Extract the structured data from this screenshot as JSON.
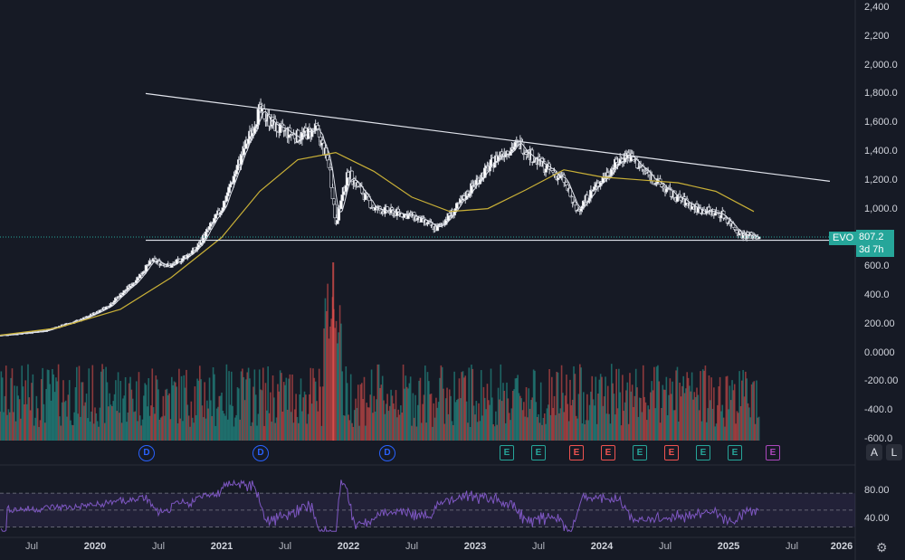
{
  "ticker": {
    "symbol": "EVO",
    "price": "807.2",
    "countdown": "3d 7h"
  },
  "price_axis": [
    "2,400",
    "2,200",
    "2,000.0",
    "1,800.0",
    "1,600.0",
    "1,400.0",
    "1,200.0",
    "1,000.0",
    "600.0",
    "400.0",
    "200.00",
    "0.0000",
    "-200.00",
    "-400.0",
    "-600.0"
  ],
  "rsi_axis": [
    "80.00",
    "40.00"
  ],
  "time_axis": [
    {
      "label": "Jul",
      "major": false
    },
    {
      "label": "2020",
      "major": true
    },
    {
      "label": "Jul",
      "major": false
    },
    {
      "label": "2021",
      "major": true
    },
    {
      "label": "Jul",
      "major": false
    },
    {
      "label": "2022",
      "major": true
    },
    {
      "label": "Jul",
      "major": false
    },
    {
      "label": "2023",
      "major": true
    },
    {
      "label": "Jul",
      "major": false
    },
    {
      "label": "2024",
      "major": true
    },
    {
      "label": "Jul",
      "major": false
    },
    {
      "label": "2025",
      "major": true
    },
    {
      "label": "Jul",
      "major": false
    },
    {
      "label": "2026",
      "major": true
    }
  ],
  "events": [
    {
      "t": 2020.4,
      "kind": "D"
    },
    {
      "t": 2021.3,
      "kind": "D"
    },
    {
      "t": 2022.3,
      "kind": "D"
    },
    {
      "t": 2023.25,
      "kind": "E",
      "color": "g"
    },
    {
      "t": 2023.5,
      "kind": "E",
      "color": "g"
    },
    {
      "t": 2023.8,
      "kind": "E",
      "color": "r"
    },
    {
      "t": 2024.05,
      "kind": "E",
      "color": "r"
    },
    {
      "t": 2024.3,
      "kind": "E",
      "color": "g"
    },
    {
      "t": 2024.55,
      "kind": "E",
      "color": "r"
    },
    {
      "t": 2024.8,
      "kind": "E",
      "color": "g"
    },
    {
      "t": 2025.05,
      "kind": "E",
      "color": "g"
    },
    {
      "t": 2025.35,
      "kind": "E",
      "color": "p"
    }
  ],
  "controls": {
    "auto": "A",
    "log": "L",
    "settings": "settings-gear"
  },
  "chart_data": {
    "type": "candlestick",
    "x_range": [
      2019.25,
      2026.0
    ],
    "y_range": [
      -600,
      2400
    ],
    "price_path": [
      [
        2019.25,
        120
      ],
      [
        2019.6,
        150
      ],
      [
        2019.9,
        230
      ],
      [
        2020.1,
        320
      ],
      [
        2020.3,
        480
      ],
      [
        2020.45,
        640
      ],
      [
        2020.6,
        600
      ],
      [
        2020.8,
        720
      ],
      [
        2021.0,
        1000
      ],
      [
        2021.15,
        1350
      ],
      [
        2021.3,
        1680
      ],
      [
        2021.45,
        1550
      ],
      [
        2021.6,
        1500
      ],
      [
        2021.75,
        1550
      ],
      [
        2021.85,
        1300
      ],
      [
        2021.9,
        900
      ],
      [
        2022.0,
        1250
      ],
      [
        2022.2,
        1000
      ],
      [
        2022.5,
        950
      ],
      [
        2022.7,
        860
      ],
      [
        2022.85,
        1000
      ],
      [
        2023.0,
        1180
      ],
      [
        2023.2,
        1380
      ],
      [
        2023.35,
        1450
      ],
      [
        2023.5,
        1320
      ],
      [
        2023.7,
        1200
      ],
      [
        2023.8,
        980
      ],
      [
        2023.95,
        1150
      ],
      [
        2024.1,
        1300
      ],
      [
        2024.2,
        1380
      ],
      [
        2024.35,
        1250
      ],
      [
        2024.55,
        1100
      ],
      [
        2024.75,
        1000
      ],
      [
        2024.95,
        960
      ],
      [
        2025.1,
        820
      ],
      [
        2025.25,
        807
      ]
    ],
    "ma_long": [
      [
        2019.25,
        120
      ],
      [
        2019.7,
        170
      ],
      [
        2020.2,
        300
      ],
      [
        2020.6,
        520
      ],
      [
        2021.0,
        800
      ],
      [
        2021.3,
        1120
      ],
      [
        2021.6,
        1340
      ],
      [
        2021.9,
        1390
      ],
      [
        2022.2,
        1260
      ],
      [
        2022.5,
        1080
      ],
      [
        2022.8,
        980
      ],
      [
        2023.1,
        1000
      ],
      [
        2023.4,
        1130
      ],
      [
        2023.7,
        1270
      ],
      [
        2024.0,
        1220
      ],
      [
        2024.3,
        1200
      ],
      [
        2024.6,
        1180
      ],
      [
        2024.9,
        1120
      ],
      [
        2025.2,
        980
      ]
    ],
    "resistance": [
      [
        2020.4,
        1800
      ],
      [
        2025.8,
        1190
      ]
    ],
    "support": [
      [
        2020.4,
        780
      ],
      [
        2025.8,
        780
      ]
    ],
    "rsi_range": [
      20,
      100
    ],
    "rsi_levels": [
      70,
      50,
      30
    ]
  }
}
